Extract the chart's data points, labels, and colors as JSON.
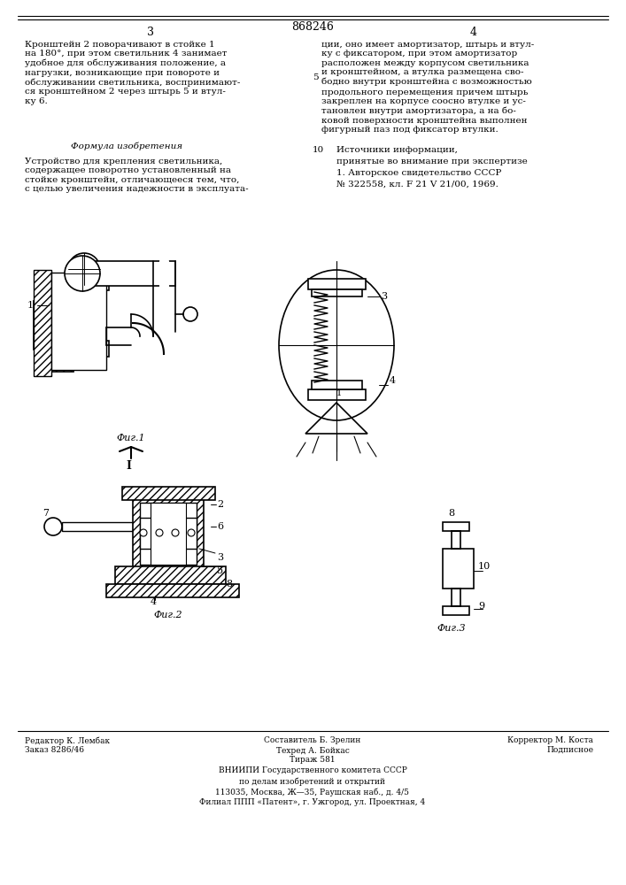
{
  "page_number_left": "3",
  "page_number_right": "4",
  "patent_number": "868246",
  "title_text": "Формула изобретения",
  "body_text_left": "Кронштейн 2 поворачивают в стойке 1\nна 180°, при этом светильник 4 занимает\nудобное для обслуживания положение, а\nнагрузки, возникающие при повороте и\nобслуживании светильника, воспринимают-\nся кронштейном 2 через штырь 5 и втул-\nку 6.",
  "formula_title": "Формула изобретения",
  "formula_text": "Устройство для крепления светильника,\nсодержащее поворотно установленный на\nстойке кронштейн, отличающееся тем, что,\nс целью увеличения надежности в эксплуата-",
  "body_text_right_top": "ции, оно имеет амортизатор, штырь и втул-\nку с фиксатором, при этом амортизатор\nрасположен между корпусом светильника\nи кронштейном, а втулка размещена сво-\nбодно внутри кронштейна с возможностью",
  "line_number_5": "5",
  "line_number_10": "10",
  "body_text_right_middle": "продольного перемещения причем штырь\nзакреплен на корпусе соосно втулке и ус-\nтановлен внутри амортизатора, а на бо-\nковой поверхности кронштейна выполнен\nфигурный паз под фиксатор втулки.",
  "sources_title": "Источники информации,",
  "sources_text": "принятые во внимание при экспертизе\n1. Авторское свидетельство СССР\n№ 322558, кл. F 21 V 21/00, 1969.",
  "footer_col1": "Редактор К. Лембак\nЗаказ 8286/46",
  "footer_col2_top": "Составитель Б. Зрелин",
  "footer_col2_mid": "Техред А. Бойкас\nТираж 581",
  "footer_col3": "Корректор М. Коста\nПодписное",
  "footer_vniip": "ВНИИПИ Государственного комитета СССР",
  "footer_affairs": "по делам изобретений и открытий",
  "footer_address": "113035, Москва, Ж—35, Раушская наб., д. 4/5",
  "footer_filial": "Филиал ППП «Патент», г. Ужгород, ул. Проектная, 4",
  "fig1_label": "Фиг.1",
  "fig2_label": "Фиг.2",
  "fig3_label": "Фиг.3",
  "bg_color": "#ffffff",
  "text_color": "#000000",
  "line_color": "#000000"
}
